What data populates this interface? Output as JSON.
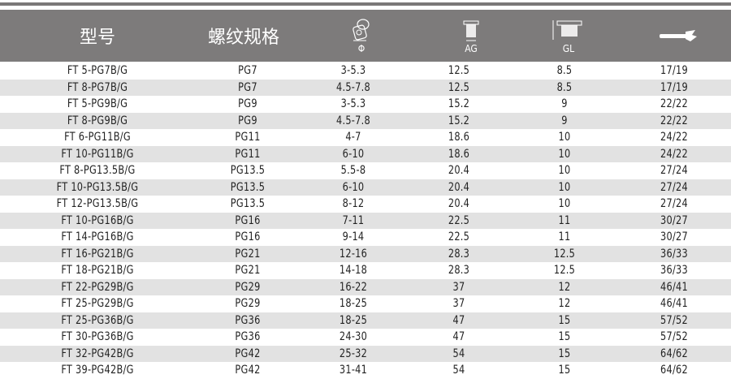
{
  "header": {
    "model": "型号",
    "thread": "螺纹规格",
    "phi": "Φ",
    "ag": "AG",
    "gl": "GL",
    "diameter_icon": "cable-gland-diameter-icon",
    "ag_icon": "thread-length-icon",
    "gl_icon": "gland-length-icon",
    "wrench_icon": "wrench-icon"
  },
  "colors": {
    "header_bg": "#7d7b7b",
    "stripe": "#e2e2e2"
  },
  "rows": [
    [
      "FT 5-PG7B/G",
      "PG7",
      "3-5.3",
      "12.5",
      "8.5",
      "17/19"
    ],
    [
      "FT 8-PG7B/G",
      "PG7",
      "4.5-7.8",
      "12.5",
      "8.5",
      "17/19"
    ],
    [
      "FT 5-PG9B/G",
      "PG9",
      "3-5.3",
      "15.2",
      "9",
      "22/22"
    ],
    [
      "FT 8-PG9B/G",
      "PG9",
      "4.5-7.8",
      "15.2",
      "9",
      "22/22"
    ],
    [
      "FT 6-PG11B/G",
      "PG11",
      "4-7",
      "18.6",
      "10",
      "24/22"
    ],
    [
      "FT 10-PG11B/G",
      "PG11",
      "6-10",
      "18.6",
      "10",
      "24/22"
    ],
    [
      "FT 8-PG13.5B/G",
      "PG13.5",
      "5.5-8",
      "20.4",
      "10",
      "27/24"
    ],
    [
      "FT 10-PG13.5B/G",
      "PG13.5",
      "6-10",
      "20.4",
      "10",
      "27/24"
    ],
    [
      "FT 12-PG13.5B/G",
      "PG13.5",
      "8-12",
      "20.4",
      "10",
      "27/24"
    ],
    [
      "FT 10-PG16B/G",
      "PG16",
      "7-11",
      "22.5",
      "11",
      "30/27"
    ],
    [
      "FT 14-PG16B/G",
      "PG16",
      "9-14",
      "22.5",
      "11",
      "30/27"
    ],
    [
      "FT 16-PG21B/G",
      "PG21",
      "12-16",
      "28.3",
      "12.5",
      "36/33"
    ],
    [
      "FT 18-PG21B/G",
      "PG21",
      "14-18",
      "28.3",
      "12.5",
      "36/33"
    ],
    [
      "FT 22-PG29B/G",
      "PG29",
      "16-22",
      "37",
      "12",
      "46/41"
    ],
    [
      "FT 25-PG29B/G",
      "PG29",
      "18-25",
      "37",
      "12",
      "46/41"
    ],
    [
      "FT 25-PG36B/G",
      "PG36",
      "18-25",
      "47",
      "15",
      "57/52"
    ],
    [
      "FT 30-PG36B/G",
      "PG36",
      "24-30",
      "47",
      "15",
      "57/52"
    ],
    [
      "FT 32-PG42B/G",
      "PG42",
      "25-32",
      "54",
      "15",
      "64/62"
    ],
    [
      "FT 39-PG42B/G",
      "PG42",
      "31-41",
      "54",
      "15",
      "64/62"
    ]
  ]
}
